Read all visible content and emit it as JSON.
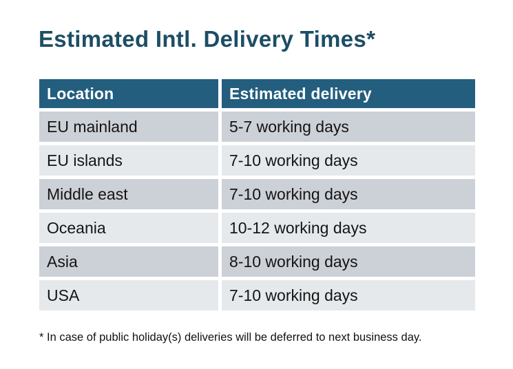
{
  "title": "Estimated Intl. Delivery Times*",
  "table": {
    "headers": [
      "Location",
      "Estimated delivery"
    ],
    "rows": [
      {
        "location": "EU mainland",
        "delivery": "5-7 working days"
      },
      {
        "location": "EU islands",
        "delivery": "7-10 working days"
      },
      {
        "location": "Middle east",
        "delivery": "7-10 working days"
      },
      {
        "location": "Oceania",
        "delivery": "10-12 working days"
      },
      {
        "location": "Asia",
        "delivery": "8-10 working days"
      },
      {
        "location": "USA",
        "delivery": "7-10 working days"
      }
    ]
  },
  "footnote": "* In case of public holiday(s) deliveries will be deferred to next business day.",
  "colors": {
    "page_bg": "#ffffff",
    "title_text": "#1d4e64",
    "header_bg": "#235e7e",
    "header_text": "#ffffff",
    "row_dark_bg": "#ccd0d7",
    "row_light_bg": "#e6e9ec",
    "cell_text": "#141414",
    "footnote_text": "#111111"
  },
  "chart_data": {
    "type": "table",
    "title": "Estimated Intl. Delivery Times*",
    "columns": [
      "Location",
      "Estimated delivery"
    ],
    "rows": [
      [
        "EU mainland",
        "5-7 working days"
      ],
      [
        "EU islands",
        "7-10 working days"
      ],
      [
        "Middle east",
        "7-10 working days"
      ],
      [
        "Oceania",
        "10-12 working days"
      ],
      [
        "Asia",
        "8-10 working days"
      ],
      [
        "USA",
        "7-10 working days"
      ]
    ],
    "footnote": "* In case of public holiday(s) deliveries will be deferred to next business day."
  }
}
